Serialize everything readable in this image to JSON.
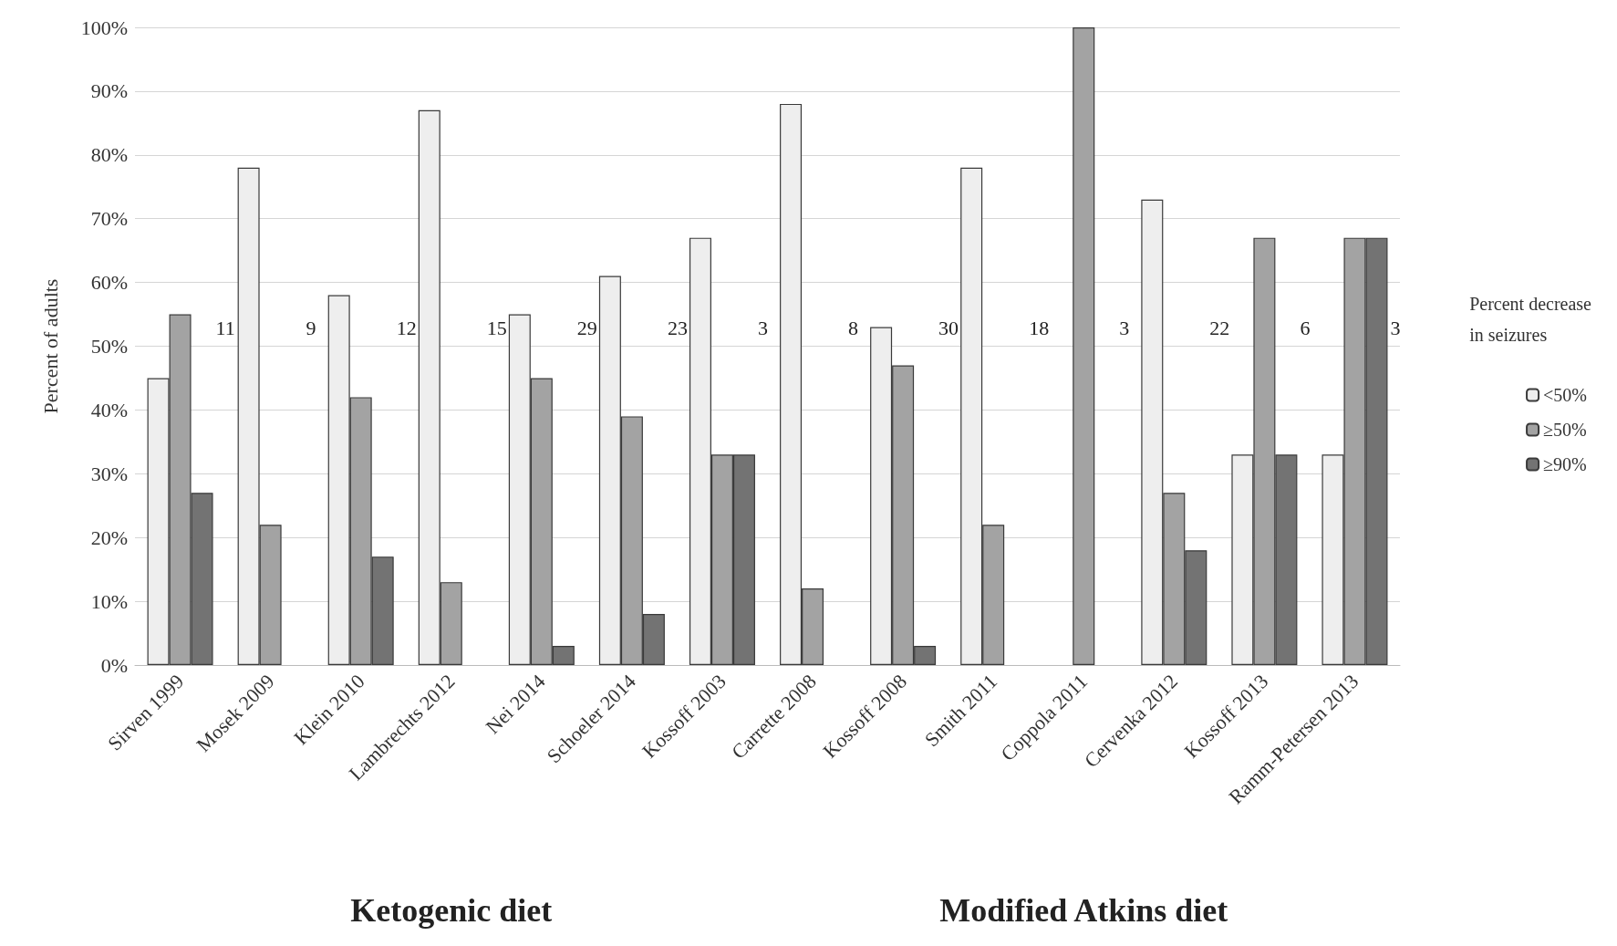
{
  "chart_data": {
    "type": "bar",
    "ylabel": "Percent of adults",
    "legend_title": "Percent decrease\nin seizures",
    "legend": "right",
    "grid": "y",
    "categories": [
      "Sirven 1999",
      "Mosek 2009",
      "Klein 2010",
      "Lambrechts 2012",
      "Nei 2014",
      "Schoeler 2014",
      "Kossoff 2003",
      "Carrette 2008",
      "Kossoff 2008",
      "Smith 2011",
      "Coppola 2011",
      "Cervenka 2012",
      "Kossoff 2013",
      "Ramm-Petersen 2013"
    ],
    "series": [
      {
        "name": "<50%",
        "color": "#eeeeee",
        "values": [
          45,
          78,
          58,
          87,
          55,
          61,
          67,
          88,
          53,
          78,
          null,
          73,
          33,
          33
        ]
      },
      {
        "name": "≥50%",
        "color": "#a3a3a3",
        "values": [
          55,
          22,
          42,
          13,
          45,
          39,
          33,
          12,
          47,
          22,
          100,
          27,
          67,
          67
        ]
      },
      {
        "name": "≥90%",
        "color": "#737373",
        "values": [
          27,
          null,
          17,
          null,
          3,
          8,
          33,
          null,
          3,
          null,
          null,
          18,
          33,
          67
        ]
      }
    ],
    "ylim": [
      0,
      100
    ],
    "yticks": [
      {
        "value": 0,
        "label": "0%"
      },
      {
        "value": 10,
        "label": "10%"
      },
      {
        "value": 20,
        "label": "20%"
      },
      {
        "value": 30,
        "label": "30%"
      },
      {
        "value": 40,
        "label": "40%"
      },
      {
        "value": 50,
        "label": "50%"
      },
      {
        "value": 60,
        "label": "60%"
      },
      {
        "value": 70,
        "label": "70%"
      },
      {
        "value": 80,
        "label": "80%"
      },
      {
        "value": 90,
        "label": "90%"
      },
      {
        "value": 100,
        "label": "100%"
      }
    ],
    "annotations": [
      "11",
      "9",
      "12",
      "15",
      "29",
      "23",
      "3",
      "8",
      "30",
      "18",
      "3",
      "22",
      "6",
      "3",
      "Ketogenic diet",
      "Modified Atkins diet"
    ]
  }
}
